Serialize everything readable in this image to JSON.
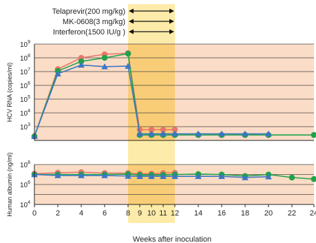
{
  "chart_data": {
    "type": "line",
    "xlabel": "Weeks after inoculation",
    "x_ticks": [
      "0",
      "2",
      "4",
      "6",
      "8",
      "9",
      "10",
      "11",
      "12",
      "14",
      "16",
      "18",
      "20",
      "22",
      "24"
    ],
    "legend": [
      {
        "label": "Telaprevir(200 mg/kg)"
      },
      {
        "label": "MK-0608(3 mg/kg)"
      },
      {
        "label": "Interferon(1500 IU/g )"
      }
    ],
    "treatment_window": {
      "start_week": 8,
      "end_week": 12
    },
    "panels": [
      {
        "id": "hcv",
        "ylabel": "HCV RNA (copies/ml)",
        "y_scale": "log10",
        "ylim_exp": [
          2,
          9
        ],
        "y_ticks": [
          {
            "base": "10",
            "exp": "9"
          },
          {
            "base": "10",
            "exp": "8"
          },
          {
            "base": "10",
            "exp": "7"
          },
          {
            "base": "10",
            "exp": "6"
          },
          {
            "base": "10",
            "exp": "5"
          },
          {
            "base": "10",
            "exp": "4"
          },
          {
            "base": "10",
            "exp": "3"
          }
        ],
        "series": [
          {
            "color": "#e8776a",
            "marker": "circle",
            "points": [
              [
                0,
                200
              ],
              [
                2,
                15000000
              ],
              [
                4,
                100000000
              ],
              [
                6,
                180000000
              ],
              [
                8,
                220000000
              ],
              [
                9,
                600
              ],
              [
                10,
                600
              ],
              [
                11,
                600
              ],
              [
                12,
                600
              ]
            ]
          },
          {
            "color": "#21a24a",
            "marker": "circle",
            "points": [
              [
                0,
                200
              ],
              [
                2,
                11000000
              ],
              [
                4,
                55000000
              ],
              [
                6,
                100000000
              ],
              [
                8,
                200000000
              ],
              [
                9,
                250
              ],
              [
                10,
                250
              ],
              [
                11,
                250
              ],
              [
                12,
                250
              ],
              [
                14,
                250
              ],
              [
                16,
                250
              ],
              [
                18,
                250
              ],
              [
                20,
                250
              ],
              [
                24,
                250
              ]
            ]
          },
          {
            "color": "#3b76c4",
            "marker": "triangle",
            "points": [
              [
                0,
                200
              ],
              [
                2,
                7000000
              ],
              [
                4,
                30000000
              ],
              [
                6,
                23000000
              ],
              [
                8,
                25000000
              ],
              [
                9,
                300
              ],
              [
                10,
                300
              ],
              [
                11,
                300
              ],
              [
                12,
                300
              ],
              [
                14,
                300
              ],
              [
                16,
                300
              ],
              [
                18,
                300
              ],
              [
                20,
                300
              ]
            ]
          }
        ]
      },
      {
        "id": "albumin",
        "ylabel": "Human albumin (ng/ml)",
        "y_scale": "log10",
        "ylim_exp": [
          4,
          8
        ],
        "y_ticks": [
          {
            "base": "10",
            "exp": "8"
          },
          {
            "base": "10",
            "exp": "6"
          },
          {
            "base": "10",
            "exp": "4"
          }
        ],
        "series": [
          {
            "color": "#e8776a",
            "marker": "circle",
            "points": [
              [
                0,
                12000000
              ],
              [
                2,
                15000000
              ],
              [
                4,
                17000000
              ],
              [
                6,
                14000000
              ],
              [
                8,
                14000000
              ],
              [
                9,
                12000000
              ],
              [
                10,
                12000000
              ],
              [
                11,
                14000000
              ],
              [
                12,
                15000000
              ]
            ]
          },
          {
            "color": "#21a24a",
            "marker": "circle",
            "points": [
              [
                0,
                10000000
              ],
              [
                2,
                10000000
              ],
              [
                4,
                10000000
              ],
              [
                6,
                10000000
              ],
              [
                8,
                11000000
              ],
              [
                9,
                9000000
              ],
              [
                10,
                9000000
              ],
              [
                11,
                9000000
              ],
              [
                12,
                10000000
              ],
              [
                14,
                11000000
              ],
              [
                16,
                10000000
              ],
              [
                18,
                7000000
              ],
              [
                20,
                10000000
              ],
              [
                22,
                5000000
              ],
              [
                24,
                3500000
              ]
            ]
          },
          {
            "color": "#3b76c4",
            "marker": "triangle",
            "points": [
              [
                0,
                10000000
              ],
              [
                2,
                8000000
              ],
              [
                4,
                8000000
              ],
              [
                6,
                8000000
              ],
              [
                8,
                7000000
              ],
              [
                9,
                6500000
              ],
              [
                10,
                6500000
              ],
              [
                11,
                6500000
              ],
              [
                12,
                6500000
              ],
              [
                14,
                6500000
              ],
              [
                16,
                6500000
              ],
              [
                18,
                5000000
              ],
              [
                20,
                6000000
              ]
            ]
          }
        ]
      }
    ]
  }
}
